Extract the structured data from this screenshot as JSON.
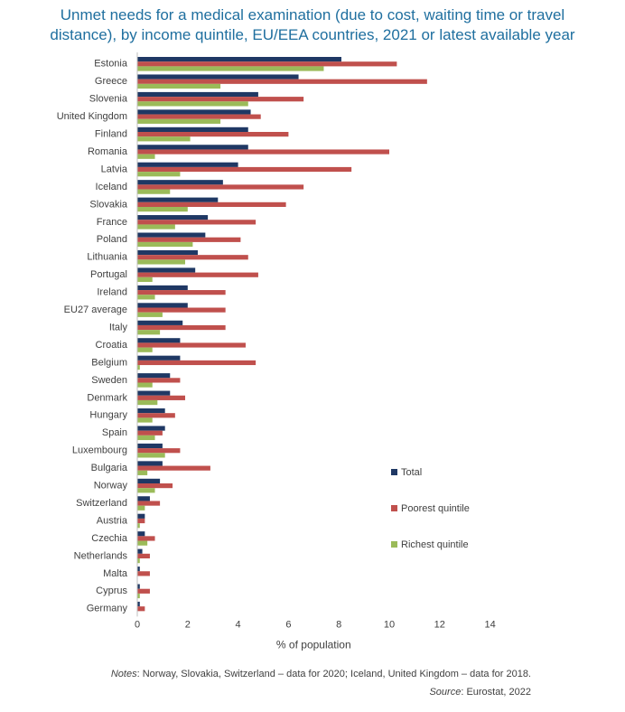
{
  "chart_data": {
    "type": "bar",
    "orientation": "horizontal",
    "title_line1": "Unmet needs for a medical examination (due to cost, waiting time or travel",
    "title_line2": "distance), by income quintile, EU/EEA countries, 2021 or latest available year",
    "xlabel": "% of population",
    "ylabel": "",
    "xlim": [
      0,
      14
    ],
    "xticks": [
      "0",
      "2",
      "4",
      "6",
      "8",
      "10",
      "12",
      "14"
    ],
    "grid": false,
    "legend_position": "right",
    "categories": [
      "Estonia",
      "Greece",
      "Slovenia",
      "United Kingdom",
      "Finland",
      "Romania",
      "Latvia",
      "Iceland",
      "Slovakia",
      "France",
      "Poland",
      "Lithuania",
      "Portugal",
      "Ireland",
      "EU27 average",
      "Italy",
      "Croatia",
      "Belgium",
      "Sweden",
      "Denmark",
      "Hungary",
      "Spain",
      "Luxembourg",
      "Bulgaria",
      "Norway",
      "Switzerland",
      "Austria",
      "Czechia",
      "Netherlands",
      "Malta",
      "Cyprus",
      "Germany"
    ],
    "series": [
      {
        "name": "Total",
        "color": "#1f3864",
        "values": [
          8.1,
          6.4,
          4.8,
          4.5,
          4.4,
          4.4,
          4.0,
          3.4,
          3.2,
          2.8,
          2.7,
          2.4,
          2.3,
          2.0,
          2.0,
          1.8,
          1.7,
          1.7,
          1.3,
          1.3,
          1.1,
          1.1,
          1.0,
          1.0,
          0.9,
          0.5,
          0.3,
          0.3,
          0.2,
          0.1,
          0.1,
          0.1
        ]
      },
      {
        "name": "Poorest quintile",
        "color": "#c0504d",
        "values": [
          10.3,
          11.5,
          6.6,
          4.9,
          6.0,
          10.0,
          8.5,
          6.6,
          5.9,
          4.7,
          4.1,
          4.4,
          4.8,
          3.5,
          3.5,
          3.5,
          4.3,
          4.7,
          1.7,
          1.9,
          1.5,
          1.0,
          1.7,
          2.9,
          1.4,
          0.9,
          0.3,
          0.7,
          0.5,
          0.5,
          0.5,
          0.3
        ]
      },
      {
        "name": "Richest quintile",
        "color": "#9bbb59",
        "values": [
          7.4,
          3.3,
          4.4,
          3.3,
          2.1,
          0.7,
          1.7,
          1.3,
          2.0,
          1.5,
          2.2,
          1.9,
          0.6,
          0.7,
          1.0,
          0.9,
          0.6,
          0.1,
          0.6,
          0.8,
          0.6,
          0.7,
          1.1,
          0.4,
          0.7,
          0.3,
          0.1,
          0.4,
          0.1,
          0.0,
          0.1,
          0.0
        ]
      }
    ]
  },
  "footer": {
    "notes_label": "Notes",
    "notes_text": ": Norway, Slovakia, Switzerland – data for 2020; Iceland, United Kingdom – data for 2018.",
    "source_label": "Source",
    "source_text": ": Eurostat, 2022"
  }
}
